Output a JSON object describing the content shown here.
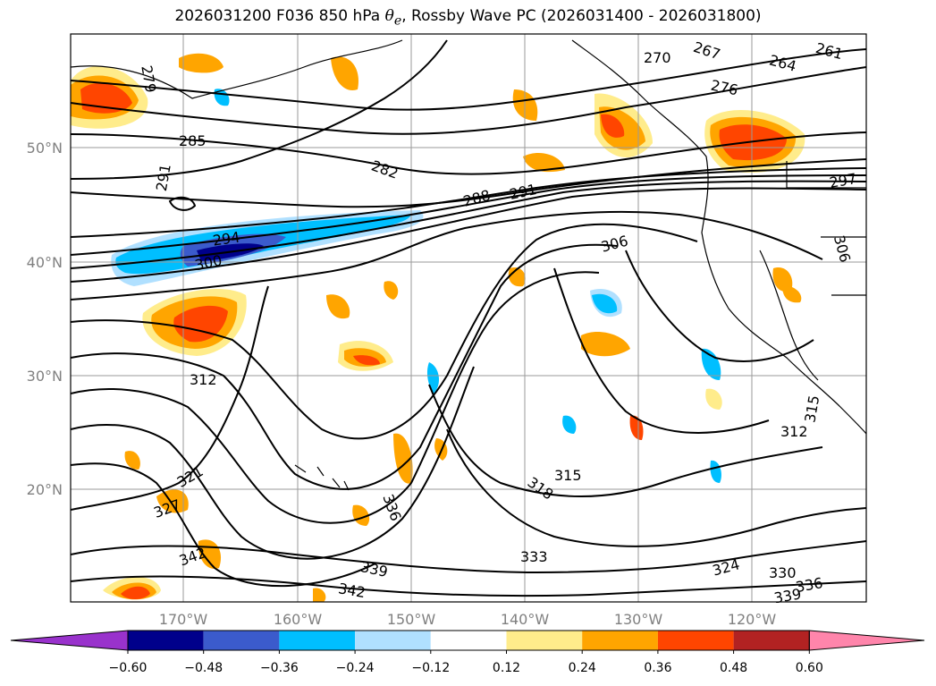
{
  "title": {
    "prefix": "2026031200 F036 850 hPa ",
    "theta_symbol": "θ",
    "theta_sub": "e",
    "suffix": ", Rossby Wave PC (2026031400 - 2026031800)"
  },
  "lat_labels": [
    "50°N",
    "40°N",
    "30°N",
    "20°N"
  ],
  "lon_labels": [
    "170°W",
    "160°W",
    "150°W",
    "140°W",
    "130°W",
    "120°W"
  ],
  "contour_labels": [
    "279",
    "285",
    "291",
    "282",
    "288",
    "291",
    "270",
    "267",
    "264",
    "261",
    "276",
    "297",
    "294",
    "300",
    "306",
    "306",
    "312",
    "321",
    "327",
    "342",
    "336",
    "339",
    "342",
    "315",
    "318",
    "333",
    "324",
    "330",
    "336",
    "339",
    "312",
    "315"
  ],
  "colorbar": {
    "colors": [
      "#9932cc",
      "#00008b",
      "#3b5bcc",
      "#00bfff",
      "#b0e0ff",
      "#ffffff",
      "#ffec8b",
      "#ffa500",
      "#ff4500",
      "#b22222",
      "#ff85ab"
    ],
    "tick_labels": [
      "−0.60",
      "−0.48",
      "−0.36",
      "−0.24",
      "−0.12",
      "0.12",
      "0.24",
      "0.36",
      "0.48",
      "0.60"
    ]
  }
}
